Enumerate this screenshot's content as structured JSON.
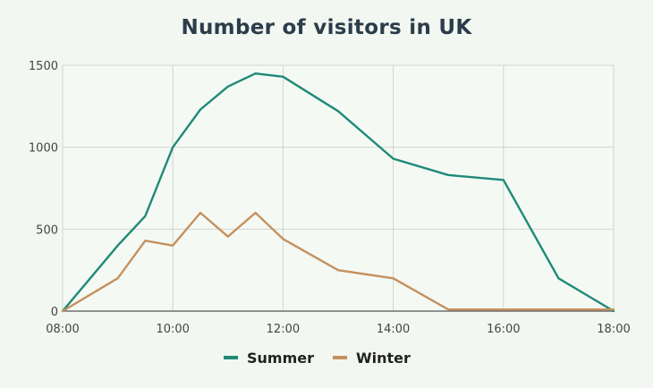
{
  "chart_data": {
    "type": "line",
    "title": "Number of visitors in UK",
    "xlabel": "",
    "ylabel": "",
    "x_ticks": [
      "08:00",
      "10:00",
      "12:00",
      "14:00",
      "16:00",
      "18:00"
    ],
    "y_ticks": [
      0,
      500,
      1000,
      1500
    ],
    "xlim": [
      "08:00",
      "18:00"
    ],
    "ylim": [
      0,
      1500
    ],
    "grid": true,
    "legend_position": "bottom",
    "series": [
      {
        "name": "Summer",
        "color": "#1e8a78",
        "points": [
          {
            "x": "08:00",
            "y": 0
          },
          {
            "x": "09:00",
            "y": 400
          },
          {
            "x": "09:30",
            "y": 580
          },
          {
            "x": "10:00",
            "y": 1000
          },
          {
            "x": "10:30",
            "y": 1230
          },
          {
            "x": "11:00",
            "y": 1370
          },
          {
            "x": "11:30",
            "y": 1450
          },
          {
            "x": "12:00",
            "y": 1430
          },
          {
            "x": "13:00",
            "y": 1220
          },
          {
            "x": "14:00",
            "y": 930
          },
          {
            "x": "15:00",
            "y": 830
          },
          {
            "x": "16:00",
            "y": 800
          },
          {
            "x": "17:00",
            "y": 200
          },
          {
            "x": "18:00",
            "y": 0
          }
        ]
      },
      {
        "name": "Winter",
        "color": "#c4915f",
        "points": [
          {
            "x": "08:00",
            "y": 0
          },
          {
            "x": "09:00",
            "y": 200
          },
          {
            "x": "09:30",
            "y": 430
          },
          {
            "x": "10:00",
            "y": 400
          },
          {
            "x": "10:30",
            "y": 600
          },
          {
            "x": "11:00",
            "y": 455
          },
          {
            "x": "11:30",
            "y": 600
          },
          {
            "x": "12:00",
            "y": 440
          },
          {
            "x": "13:00",
            "y": 250
          },
          {
            "x": "14:00",
            "y": 200
          },
          {
            "x": "15:00",
            "y": 10
          },
          {
            "x": "16:00",
            "y": 10
          },
          {
            "x": "17:00",
            "y": 10
          },
          {
            "x": "18:00",
            "y": 10
          }
        ]
      }
    ]
  }
}
